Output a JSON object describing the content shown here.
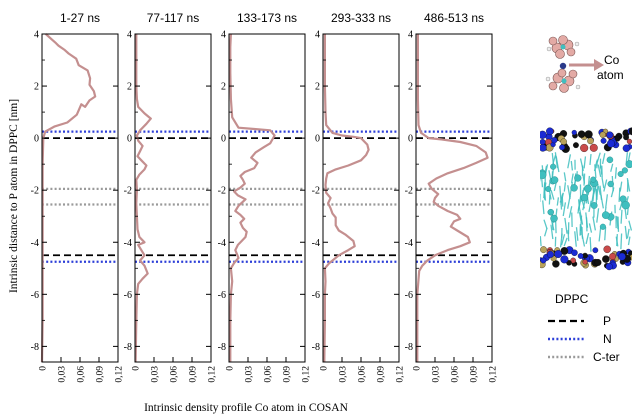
{
  "chart_data": {
    "type": "line",
    "ylabel": "Intrinsic distance to P atom in DPPC [nm]",
    "xlabel": "Intrinsic density profile Co atom in COSAN",
    "ylim": [
      -8.6,
      4
    ],
    "xlim": [
      0,
      0.12
    ],
    "yticks": [
      4,
      2,
      0,
      -2,
      -4,
      -6,
      -8
    ],
    "xticks": [
      0,
      0.03,
      0.06,
      0.09,
      0.12
    ],
    "xtick_labels": [
      "0",
      "0,03",
      "0,06",
      "0,09",
      "0,12"
    ],
    "line_color": "#c48f8f",
    "reference_lines": [
      {
        "y": 0.0,
        "style": "dashed",
        "color": "#000000",
        "legend": "P"
      },
      {
        "y": -4.5,
        "style": "dashed",
        "color": "#000000",
        "legend": "P"
      },
      {
        "y": 0.25,
        "style": "dotted",
        "color": "#2d3fd8",
        "legend": "N"
      },
      {
        "y": -4.75,
        "style": "dotted",
        "color": "#2d3fd8",
        "legend": "N"
      },
      {
        "y": -1.95,
        "style": "dotted",
        "color": "#9a9a9a",
        "legend": "C-ter"
      },
      {
        "y": -2.55,
        "style": "dotted",
        "color": "#9a9a9a",
        "legend": "C-ter"
      }
    ],
    "panels": [
      {
        "title": "1-27 ns",
        "points": [
          [
            0,
            -8.6
          ],
          [
            0.001,
            -7
          ],
          [
            0.001,
            -5
          ],
          [
            0.001,
            -3
          ],
          [
            0.001,
            -1
          ],
          [
            0.002,
            0
          ],
          [
            0.005,
            0.25
          ],
          [
            0.02,
            0.45
          ],
          [
            0.04,
            0.6
          ],
          [
            0.055,
            0.9
          ],
          [
            0.062,
            1.3
          ],
          [
            0.068,
            1.2
          ],
          [
            0.075,
            1.45
          ],
          [
            0.084,
            1.6
          ],
          [
            0.082,
            1.8
          ],
          [
            0.075,
            2.05
          ],
          [
            0.076,
            2.3
          ],
          [
            0.072,
            2.6
          ],
          [
            0.058,
            2.8
          ],
          [
            0.054,
            3.05
          ],
          [
            0.042,
            3.25
          ],
          [
            0.035,
            3.4
          ],
          [
            0.026,
            3.55
          ],
          [
            0.022,
            3.65
          ],
          [
            0.015,
            3.8
          ],
          [
            0.006,
            4.0
          ]
        ]
      },
      {
        "title": "77-117 ns",
        "points": [
          [
            0.001,
            -8.6
          ],
          [
            0.002,
            -7
          ],
          [
            0.003,
            -6
          ],
          [
            0.005,
            -5.6
          ],
          [
            0.012,
            -5.4
          ],
          [
            0.02,
            -5.2
          ],
          [
            0.015,
            -4.9
          ],
          [
            0.008,
            -4.7
          ],
          [
            0.015,
            -4.5
          ],
          [
            0.01,
            -4.3
          ],
          [
            0.005,
            -4.1
          ],
          [
            0.015,
            -4
          ],
          [
            0.007,
            -3.8
          ],
          [
            0.004,
            -3.5
          ],
          [
            0.003,
            -3
          ],
          [
            0.002,
            -2.5
          ],
          [
            0.003,
            -2
          ],
          [
            0.002,
            -1.6
          ],
          [
            0.007,
            -1.4
          ],
          [
            0.015,
            -1.2
          ],
          [
            0.018,
            -1.05
          ],
          [
            0.01,
            -0.85
          ],
          [
            0.004,
            -0.7
          ],
          [
            0.008,
            -0.5
          ],
          [
            0.012,
            -0.3
          ],
          [
            0.005,
            -0.1
          ],
          [
            0.003,
            0.1
          ],
          [
            0.008,
            0.3
          ],
          [
            0.018,
            0.55
          ],
          [
            0.025,
            0.75
          ],
          [
            0.015,
            0.95
          ],
          [
            0.005,
            1.2
          ],
          [
            0.003,
            1.5
          ],
          [
            0.002,
            2
          ],
          [
            0.002,
            3
          ],
          [
            0.002,
            4
          ]
        ]
      },
      {
        "title": "133-173 ns",
        "points": [
          [
            0.002,
            -8.6
          ],
          [
            0.002,
            -7
          ],
          [
            0.003,
            -6
          ],
          [
            0.005,
            -5.5
          ],
          [
            0.003,
            -5
          ],
          [
            0.008,
            -4.8
          ],
          [
            0.015,
            -4.6
          ],
          [
            0.01,
            -4.3
          ],
          [
            0.014,
            -4.1
          ],
          [
            0.02,
            -3.95
          ],
          [
            0.026,
            -3.8
          ],
          [
            0.028,
            -3.6
          ],
          [
            0.022,
            -3.45
          ],
          [
            0.018,
            -3.25
          ],
          [
            0.024,
            -3.1
          ],
          [
            0.018,
            -2.95
          ],
          [
            0.01,
            -2.8
          ],
          [
            0.015,
            -2.6
          ],
          [
            0.026,
            -2.35
          ],
          [
            0.014,
            -2.2
          ],
          [
            0.008,
            -2.05
          ],
          [
            0.018,
            -1.9
          ],
          [
            0.025,
            -1.75
          ],
          [
            0.022,
            -1.6
          ],
          [
            0.018,
            -1.45
          ],
          [
            0.025,
            -1.3
          ],
          [
            0.04,
            -1.15
          ],
          [
            0.045,
            -0.95
          ],
          [
            0.035,
            -0.75
          ],
          [
            0.042,
            -0.55
          ],
          [
            0.055,
            -0.35
          ],
          [
            0.065,
            -0.2
          ],
          [
            0.072,
            0.1
          ],
          [
            0.065,
            0.3
          ],
          [
            0.04,
            0.35
          ],
          [
            0.015,
            0.4
          ],
          [
            0.005,
            0.8
          ],
          [
            0.003,
            1.5
          ],
          [
            0.002,
            2.5
          ],
          [
            0.002,
            3.5
          ],
          [
            0.003,
            4
          ]
        ]
      },
      {
        "title": "293-333 ns",
        "points": [
          [
            0.002,
            -8.6
          ],
          [
            0.003,
            -7
          ],
          [
            0.003,
            -6
          ],
          [
            0.004,
            -5.5
          ],
          [
            0.003,
            -5
          ],
          [
            0.01,
            -4.8
          ],
          [
            0.025,
            -4.5
          ],
          [
            0.04,
            -4.3
          ],
          [
            0.05,
            -4.15
          ],
          [
            0.048,
            -3.95
          ],
          [
            0.035,
            -3.7
          ],
          [
            0.025,
            -3.55
          ],
          [
            0.02,
            -3.35
          ],
          [
            0.02,
            -3.2
          ],
          [
            0.02,
            -3.05
          ],
          [
            0.015,
            -2.9
          ],
          [
            0.012,
            -2.7
          ],
          [
            0.008,
            -2.5
          ],
          [
            0.012,
            -2.3
          ],
          [
            0.005,
            -2.1
          ],
          [
            0.004,
            -1.8
          ],
          [
            0.005,
            -1.55
          ],
          [
            0.007,
            -1.35
          ],
          [
            0.02,
            -1.2
          ],
          [
            0.04,
            -1.05
          ],
          [
            0.06,
            -0.85
          ],
          [
            0.068,
            -0.65
          ],
          [
            0.072,
            -0.45
          ],
          [
            0.07,
            -0.25
          ],
          [
            0.06,
            0
          ],
          [
            0.048,
            0.05
          ],
          [
            0.03,
            0.1
          ],
          [
            0.015,
            0.2
          ],
          [
            0.005,
            0.5
          ],
          [
            0.004,
            1
          ],
          [
            0.003,
            2
          ],
          [
            0.003,
            3
          ],
          [
            0.003,
            4
          ]
        ]
      },
      {
        "title": "486-513 ns",
        "points": [
          [
            0.002,
            -8.6
          ],
          [
            0.002,
            -7
          ],
          [
            0.002,
            -6
          ],
          [
            0.005,
            -5.1
          ],
          [
            0.01,
            -4.9
          ],
          [
            0.018,
            -4.7
          ],
          [
            0.03,
            -4.5
          ],
          [
            0.05,
            -4.3
          ],
          [
            0.07,
            -4.15
          ],
          [
            0.085,
            -4.0
          ],
          [
            0.082,
            -3.8
          ],
          [
            0.065,
            -3.55
          ],
          [
            0.055,
            -3.4
          ],
          [
            0.06,
            -3.2
          ],
          [
            0.07,
            -3.1
          ],
          [
            0.065,
            -2.95
          ],
          [
            0.05,
            -2.8
          ],
          [
            0.035,
            -2.6
          ],
          [
            0.028,
            -2.45
          ],
          [
            0.03,
            -2.3
          ],
          [
            0.035,
            -2.15
          ],
          [
            0.025,
            -1.95
          ],
          [
            0.02,
            -1.75
          ],
          [
            0.032,
            -1.55
          ],
          [
            0.05,
            -1.35
          ],
          [
            0.075,
            -1.15
          ],
          [
            0.095,
            -0.95
          ],
          [
            0.113,
            -0.75
          ],
          [
            0.11,
            -0.55
          ],
          [
            0.095,
            -0.3
          ],
          [
            0.07,
            -0.15
          ],
          [
            0.04,
            -0.05
          ],
          [
            0.02,
            0
          ],
          [
            0.008,
            0.2
          ],
          [
            0.004,
            0.5
          ],
          [
            0.003,
            1.5
          ],
          [
            0.003,
            2.5
          ],
          [
            0.003,
            3.5
          ],
          [
            0.003,
            4
          ]
        ]
      }
    ]
  },
  "inset": {
    "molecule_label_line1": "Co",
    "molecule_label_line2": "atom",
    "membrane_head_color": "#1b2bd4",
    "membrane_tail_color": "#3fbfbf"
  },
  "legend": {
    "title": "DPPC",
    "entries": [
      {
        "label": "P",
        "style": "dashed",
        "color": "#000000"
      },
      {
        "label": "N",
        "style": "dotted",
        "color": "#2d3fd8"
      },
      {
        "label": "C-ter",
        "style": "dotted",
        "color": "#9a9a9a"
      }
    ]
  }
}
